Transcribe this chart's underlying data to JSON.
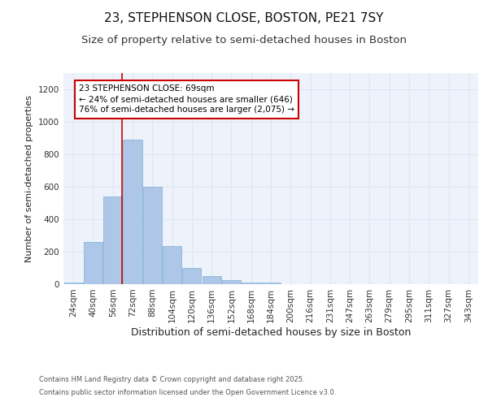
{
  "title_line1": "23, STEPHENSON CLOSE, BOSTON, PE21 7SY",
  "title_line2": "Size of property relative to semi-detached houses in Boston",
  "xlabel": "Distribution of semi-detached houses by size in Boston",
  "ylabel": "Number of semi-detached properties",
  "bar_labels": [
    "24sqm",
    "40sqm",
    "56sqm",
    "72sqm",
    "88sqm",
    "104sqm",
    "120sqm",
    "136sqm",
    "152sqm",
    "168sqm",
    "184sqm",
    "200sqm",
    "216sqm",
    "231sqm",
    "247sqm",
    "263sqm",
    "279sqm",
    "295sqm",
    "311sqm",
    "327sqm",
    "343sqm"
  ],
  "bar_values": [
    10,
    260,
    540,
    890,
    600,
    235,
    100,
    50,
    25,
    10,
    10,
    0,
    0,
    0,
    0,
    0,
    0,
    0,
    0,
    0,
    0
  ],
  "bar_color": "#aec6e8",
  "bar_edge_color": "#7bafd4",
  "annotation_title": "23 STEPHENSON CLOSE: 69sqm",
  "annotation_line1": "← 24% of semi-detached houses are smaller (646)",
  "annotation_line2": "76% of semi-detached houses are larger (2,075) →",
  "annotation_box_color": "#ffffff",
  "annotation_box_edge": "#cc0000",
  "vline_color": "#cc0000",
  "ylim": [
    0,
    1300
  ],
  "yticks": [
    0,
    200,
    400,
    600,
    800,
    1000,
    1200
  ],
  "grid_color": "#dce6f5",
  "background_color": "#eef3fb",
  "footer_line1": "Contains HM Land Registry data © Crown copyright and database right 2025.",
  "footer_line2": "Contains public sector information licensed under the Open Government Licence v3.0.",
  "title_fontsize": 11,
  "subtitle_fontsize": 9.5,
  "xlabel_fontsize": 9,
  "ylabel_fontsize": 8,
  "tick_fontsize": 7.5,
  "annot_fontsize": 7.5,
  "footer_fontsize": 6
}
